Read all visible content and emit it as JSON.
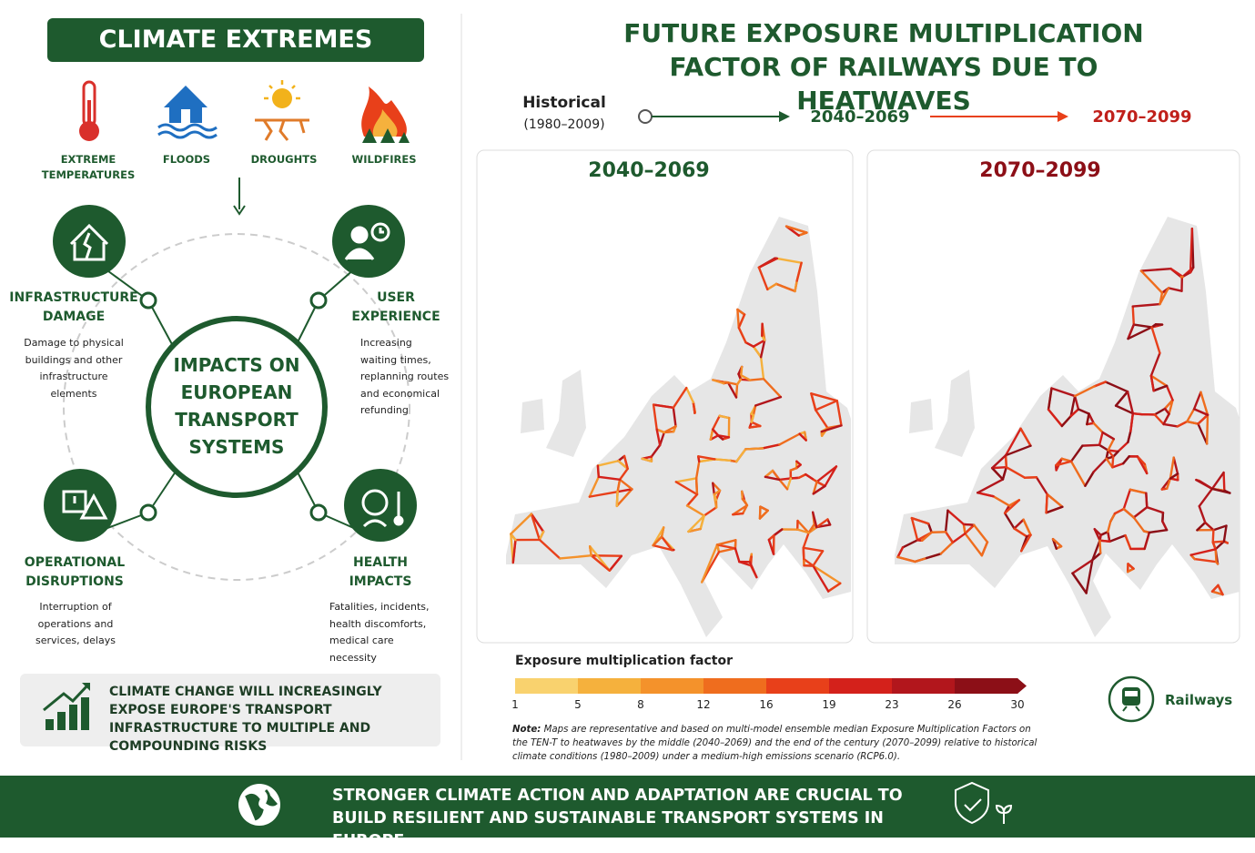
{
  "left": {
    "title": "CLIMATE EXTREMES",
    "hazards": [
      "EXTREME TEMPERATURES",
      "FLOODS",
      "DROUGHTS",
      "WILDFIRES"
    ],
    "center": "IMPACTS ON EUROPEAN TRANSPORT SYSTEMS",
    "impacts": [
      {
        "title": "INFRASTRUCTURE DAMAGE",
        "text": "Damage to physical buildings and other infrastructure elements"
      },
      {
        "title": "USER EXPERIENCE",
        "text": "Increasing waiting times, replanning routes and economical refunding"
      },
      {
        "title": "OPERATIONAL DISRUPTIONS",
        "text": "Interruption of operations and services, delays"
      },
      {
        "title": "HEALTH IMPACTS",
        "text": "Fatalities, incidents, health discomforts, medical care necessity"
      }
    ],
    "callout": "CLIMATE CHANGE WILL INCREASINGLY EXPOSE EUROPE'S TRANSPORT INFRASTRUCTURE TO MULTIPLE AND COMPOUNDING RISKS"
  },
  "right": {
    "title": "FUTURE EXPOSURE MULTIPLICATION FACTOR OF RAILWAYS DUE TO HEATWAVES",
    "timeline": {
      "historical": "Historical",
      "historical_years": "(1980–2009)",
      "mid": "2040–2069",
      "end": "2070–2099"
    },
    "maps": [
      "2040–2069",
      "2070–2099"
    ],
    "legend": {
      "title": "Exposure multiplication factor",
      "ticks": [
        1,
        5,
        8,
        12,
        16,
        19,
        23,
        26,
        30
      ]
    },
    "railways": "Railways",
    "note_label": "Note:",
    "note": "Maps are representative and based on multi-model ensemble median Exposure Multiplication Factors on the TEN-T to heatwaves by the middle (2040–2069) and the end of the century (2070–2099) relative to historical climate conditions (1980–2009) under a medium-high emissions scenario (RCP6.0)."
  },
  "footer": "STRONGER CLIMATE ACTION AND ADAPTATION ARE CRUCIAL TO BUILD RESILIENT AND SUSTAINABLE TRANSPORT SYSTEMS IN EUROPE"
}
